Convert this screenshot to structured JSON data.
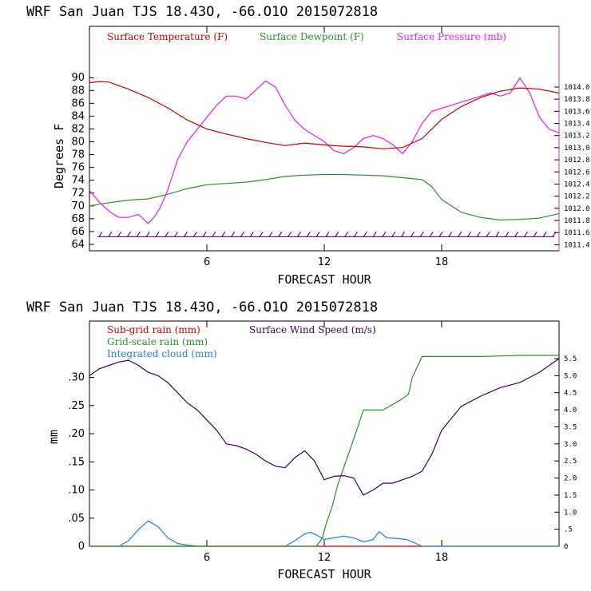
{
  "chart_data": [
    {
      "type": "line",
      "header": "WRF  San Juan TJS  18.43O, -66.O1O  2015072818",
      "xlabel": "FORECAST HOUR",
      "ylabel": "Degrees F",
      "xlim": [
        0,
        24
      ],
      "ylim": [
        63,
        98
      ],
      "y2lim": [
        1011.3,
        1015.0
      ],
      "x_ticks": [
        "6",
        "12",
        "18"
      ],
      "y_ticks": [
        "64",
        "66",
        "68",
        "70",
        "72",
        "74",
        "76",
        "78",
        "80",
        "82",
        "84",
        "86",
        "88",
        "90"
      ],
      "y2_ticks": [
        "1011.4",
        "1011.6",
        "1011.8",
        "1012.0",
        "1012.2",
        "1012.4",
        "1012.6",
        "1012.8",
        "1013.0",
        "1013.2",
        "1013.4",
        "1013.6",
        "1013.8",
        "1014.0"
      ],
      "colors": {
        "temp": "#c00000",
        "dew": "#2e8b2e",
        "pres": "#e020e0",
        "wind": "#3a0050"
      },
      "series": [
        {
          "name": "Surface Temperature (F)",
          "axis": "left",
          "x": [
            0,
            0.5,
            1,
            2,
            3,
            4,
            5,
            6,
            7,
            8,
            9,
            10,
            11,
            12,
            13,
            14,
            15,
            16,
            17,
            18,
            19,
            20,
            21,
            22,
            23,
            24
          ],
          "values": [
            89.2,
            89.4,
            89.3,
            88.2,
            86.9,
            85.3,
            83.4,
            82.0,
            81.2,
            80.5,
            79.9,
            79.4,
            79.8,
            79.5,
            79.3,
            79.2,
            78.9,
            79.1,
            80.5,
            83.5,
            85.5,
            86.9,
            87.9,
            88.4,
            88.2,
            87.6
          ]
        },
        {
          "name": "Surface Dewpoint (F)",
          "axis": "left",
          "x": [
            0,
            1,
            2,
            3,
            4,
            5,
            6,
            7,
            8,
            9,
            10,
            11,
            12,
            13,
            14,
            15,
            16,
            17,
            17.5,
            18,
            19,
            20,
            21,
            22,
            23,
            24
          ],
          "values": [
            70.0,
            70.5,
            70.9,
            71.1,
            71.8,
            72.7,
            73.3,
            73.5,
            73.7,
            74.1,
            74.6,
            74.8,
            74.9,
            74.9,
            74.8,
            74.7,
            74.4,
            74.1,
            73.0,
            71.0,
            69.0,
            68.2,
            67.8,
            67.9,
            68.1,
            68.8
          ]
        },
        {
          "name": "Surface Pressure (mb)",
          "axis": "right",
          "x": [
            0,
            0.5,
            1,
            1.5,
            2,
            2.5,
            3,
            3.3,
            3.6,
            4,
            4.5,
            5,
            5.5,
            6,
            6.5,
            7,
            7.5,
            8,
            8.5,
            9,
            9.5,
            10,
            10.5,
            11,
            11.5,
            12,
            12.5,
            13,
            13.5,
            14,
            14.5,
            15,
            15.5,
            16,
            16.5,
            17,
            17.5,
            18,
            18.5,
            19,
            19.5,
            20,
            20.5,
            21,
            21.5,
            22,
            22.5,
            23,
            23.5,
            24
          ],
          "values": [
            1012.3,
            1012.1,
            1011.95,
            1011.85,
            1011.85,
            1011.9,
            1011.75,
            1011.85,
            1012.0,
            1012.3,
            1012.8,
            1013.1,
            1013.3,
            1013.5,
            1013.7,
            1013.85,
            1013.85,
            1013.8,
            1013.95,
            1014.1,
            1014.0,
            1013.7,
            1013.45,
            1013.3,
            1013.2,
            1013.1,
            1012.95,
            1012.9,
            1013.0,
            1013.15,
            1013.2,
            1013.15,
            1013.05,
            1012.9,
            1013.1,
            1013.4,
            1013.6,
            1013.65,
            1013.7,
            1013.75,
            1013.8,
            1013.85,
            1013.9,
            1013.85,
            1013.9,
            1014.15,
            1013.9,
            1013.5,
            1013.3,
            1013.25
          ]
        }
      ],
      "wind_barbs": {
        "level": 65.2,
        "count": 49
      },
      "legend": "top"
    },
    {
      "type": "line",
      "header": "WRF  San Juan TJS  18.43O, -66.O1O  2015072818",
      "xlabel": "FORECAST HOUR",
      "ylabel": "mm",
      "xlim": [
        0,
        24
      ],
      "ylim": [
        0,
        0.4
      ],
      "y2lim": [
        0,
        6.6
      ],
      "x_ticks": [
        "6",
        "12",
        "18"
      ],
      "y_ticks": [
        "0",
        ".05",
        ".10",
        ".15",
        ".20",
        ".25",
        ".30"
      ],
      "y2_ticks": [
        "0",
        ".5",
        "1.0",
        "1.5",
        "2.0",
        "2.5",
        "3.0",
        "3.5",
        "4.0",
        "4.5",
        "5.0",
        "5.5"
      ],
      "colors": {
        "subgrid": "#c00000",
        "gridscale": "#2e8b2e",
        "cloud": "#1e7fd0",
        "wind": "#3a0050"
      },
      "legend": "top-left",
      "series": [
        {
          "name": "Sub-grid rain (mm)",
          "axis": "left",
          "x": [
            0,
            24
          ],
          "values": [
            0,
            0
          ]
        },
        {
          "name": "Grid-scale rain (mm)",
          "axis": "left",
          "x": [
            0,
            11.6,
            11.9,
            12.1,
            12.4,
            12.7,
            13.0,
            13.3,
            13.6,
            14.0,
            14.6,
            15.0,
            15.4,
            15.9,
            16.3,
            16.5,
            17.0,
            18.0,
            20.0,
            22.0,
            24.0
          ],
          "values": [
            0,
            0,
            0.015,
            0.04,
            0.07,
            0.11,
            0.14,
            0.17,
            0.2,
            0.242,
            0.242,
            0.242,
            0.25,
            0.26,
            0.27,
            0.3,
            0.337,
            0.337,
            0.337,
            0.339,
            0.339
          ]
        },
        {
          "name": "Integrated cloud (mm)",
          "axis": "left",
          "x": [
            0,
            1.5,
            2,
            2.5,
            3,
            3.5,
            4,
            4.5,
            5,
            5.5,
            10,
            10.5,
            11,
            11.3,
            11.6,
            12,
            12.5,
            13,
            13.5,
            14,
            14.5,
            14.8,
            15.2,
            15.7,
            16.2,
            16.5,
            17,
            24
          ],
          "values": [
            0,
            0,
            0.01,
            0.03,
            0.045,
            0.035,
            0.015,
            0.005,
            0.002,
            0,
            0,
            0.01,
            0.022,
            0.025,
            0.02,
            0.012,
            0.015,
            0.018,
            0.015,
            0.008,
            0.012,
            0.026,
            0.015,
            0.014,
            0.012,
            0.008,
            0,
            0
          ]
        },
        {
          "name": "Surface Wind Speed (m/s)",
          "axis": "right",
          "x": [
            0,
            0.5,
            1,
            1.5,
            2,
            2.5,
            3,
            3.5,
            4,
            4.5,
            5,
            5.5,
            6,
            6.5,
            7,
            7.5,
            8,
            8.5,
            9,
            9.5,
            10,
            10.5,
            11,
            11.5,
            12,
            12.5,
            13,
            13.5,
            14,
            14.5,
            15,
            15.5,
            16,
            16.5,
            17,
            17.5,
            18,
            19,
            20,
            21,
            22,
            23,
            24
          ],
          "values": [
            5.0,
            5.2,
            5.3,
            5.4,
            5.45,
            5.3,
            5.1,
            5.0,
            4.8,
            4.5,
            4.2,
            4.0,
            3.7,
            3.4,
            3.0,
            2.95,
            2.85,
            2.7,
            2.5,
            2.35,
            2.3,
            2.6,
            2.8,
            2.5,
            1.95,
            2.05,
            2.07,
            2.0,
            1.5,
            1.65,
            1.85,
            1.85,
            1.95,
            2.05,
            2.2,
            2.7,
            3.4,
            4.1,
            4.4,
            4.65,
            4.8,
            5.1,
            5.5
          ]
        }
      ]
    }
  ]
}
